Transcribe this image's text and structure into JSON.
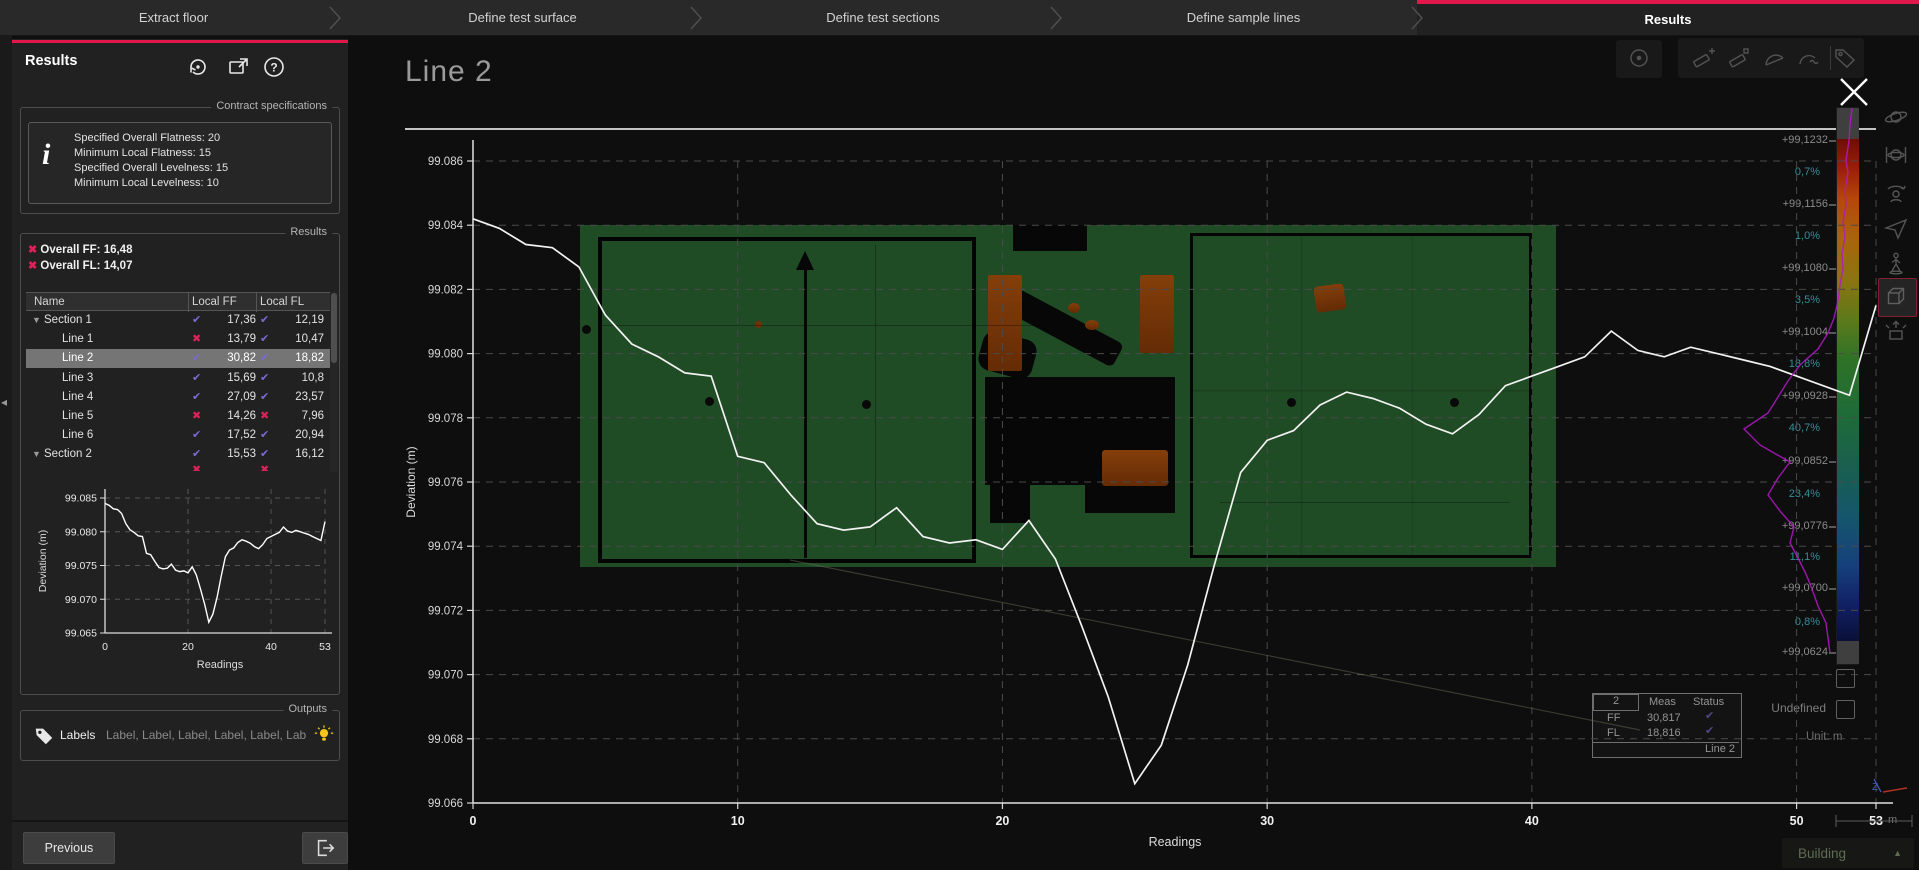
{
  "wizard": {
    "tabs": [
      {
        "label": "Extract floor",
        "active": false
      },
      {
        "label": "Define test surface",
        "active": false
      },
      {
        "label": "Define test sections",
        "active": false
      },
      {
        "label": "Define sample lines",
        "active": false
      },
      {
        "label": "Results",
        "active": true
      }
    ]
  },
  "sidebar": {
    "title": "Results",
    "header_icons": [
      "history-icon",
      "open-new-window-icon",
      "help-icon"
    ],
    "contract": {
      "group_label": "Contract specifications",
      "lines": [
        "Specified Overall Flatness: 20",
        "Minimum Local Flatness: 15",
        "Specified Overall Levelness: 15",
        "Minimum Local Levelness: 10"
      ]
    },
    "results": {
      "group_label": "Results",
      "overall": [
        {
          "label": "Overall FF: 16,48",
          "status": "fail"
        },
        {
          "label": "Overall FL: 14,07",
          "status": "fail"
        }
      ],
      "table": {
        "columns": [
          "Name",
          "Local FF",
          "Local FL"
        ],
        "rows": [
          {
            "name": "Section 1",
            "level": 0,
            "expandable": true,
            "ff": "17,36",
            "ff_status": "pass",
            "fl": "12,19",
            "fl_status": "pass",
            "selected": false
          },
          {
            "name": "Line 1",
            "level": 1,
            "expandable": false,
            "ff": "13,79",
            "ff_status": "fail",
            "fl": "10,47",
            "fl_status": "pass",
            "selected": false
          },
          {
            "name": "Line 2",
            "level": 1,
            "expandable": false,
            "ff": "30,82",
            "ff_status": "pass",
            "fl": "18,82",
            "fl_status": "pass",
            "selected": true
          },
          {
            "name": "Line 3",
            "level": 1,
            "expandable": false,
            "ff": "15,69",
            "ff_status": "pass",
            "fl": "10,8",
            "fl_status": "pass",
            "selected": false
          },
          {
            "name": "Line 4",
            "level": 1,
            "expandable": false,
            "ff": "27,09",
            "ff_status": "pass",
            "fl": "23,57",
            "fl_status": "pass",
            "selected": false
          },
          {
            "name": "Line 5",
            "level": 1,
            "expandable": false,
            "ff": "14,26",
            "ff_status": "fail",
            "fl": "7,96",
            "fl_status": "fail",
            "selected": false
          },
          {
            "name": "Line 6",
            "level": 1,
            "expandable": false,
            "ff": "17,52",
            "ff_status": "pass",
            "fl": "20,94",
            "fl_status": "pass",
            "selected": false
          },
          {
            "name": "Section 2",
            "level": 0,
            "expandable": true,
            "ff": "15,53",
            "ff_status": "pass",
            "fl": "16,12",
            "fl_status": "pass",
            "selected": false
          }
        ]
      }
    },
    "outputs": {
      "group_label": "Outputs",
      "labels_title": "Labels",
      "labels_value": "Label, Label, Label, Label, Label, Lab"
    },
    "footer": {
      "previous_label": "Previous"
    }
  },
  "overlay": {
    "title": "Line 2",
    "top_toolbar_icons": [
      "sphere-icon",
      "add-measurement-icon",
      "measurement-icon",
      "angle-icon",
      "angle-wave-icon",
      "tag-icon"
    ],
    "view_toolbar_icons": [
      "orbit-icon",
      "constrained-orbit-icon",
      "turntable-icon",
      "fly-icon",
      "walk-icon",
      "view-cube-icon",
      "explode-icon"
    ],
    "undefined_label": "Undefined",
    "unit_label": "Unit: m",
    "ruler_label": "m",
    "building_label": "Building",
    "tooltip": {
      "id": "2",
      "col_measurement": "Meas",
      "col_status": "Status",
      "rows": [
        {
          "label": "FF",
          "value": "30,817",
          "status": "pass"
        },
        {
          "label": "FL",
          "value": "18,816",
          "status": "pass"
        }
      ],
      "footer": "Line 2"
    },
    "color_scale": {
      "labels": [
        {
          "text": "+99,1232",
          "kind": "value"
        },
        {
          "text": "0,7%",
          "kind": "pct"
        },
        {
          "text": "+99,1156",
          "kind": "value"
        },
        {
          "text": "1,0%",
          "kind": "pct"
        },
        {
          "text": "+99,1080",
          "kind": "value"
        },
        {
          "text": "3,5%",
          "kind": "pct"
        },
        {
          "text": "+99,1004",
          "kind": "value"
        },
        {
          "text": "18,8%",
          "kind": "pct"
        },
        {
          "text": "+99,0928",
          "kind": "value"
        },
        {
          "text": "40,7%",
          "kind": "pct"
        },
        {
          "text": "+99,0852",
          "kind": "value"
        },
        {
          "text": "23,4%",
          "kind": "pct"
        },
        {
          "text": "+99,0776",
          "kind": "value"
        },
        {
          "text": "11,1%",
          "kind": "pct"
        },
        {
          "text": "+99,0700",
          "kind": "value"
        },
        {
          "text": "0,8%",
          "kind": "pct"
        },
        {
          "text": "+99,0624",
          "kind": "value"
        }
      ]
    }
  },
  "chart_data": {
    "type": "line",
    "title": "Line 2",
    "xlabel": "Readings",
    "ylabel": "Deviation (m)",
    "xlim": [
      0,
      53
    ],
    "ylim_main": [
      99.066,
      99.086
    ],
    "x_ticks": [
      0,
      10,
      20,
      30,
      40,
      50,
      53
    ],
    "main_y_ticks": [
      99.086,
      99.084,
      99.082,
      99.08,
      99.078,
      99.076,
      99.074,
      99.072,
      99.07,
      99.068,
      99.066
    ],
    "mini_y_ticks": [
      99.085,
      99.08,
      99.075,
      99.07,
      99.065
    ],
    "mini_x_ticks": [
      0,
      20,
      40,
      53
    ],
    "grid": "dashed",
    "legend": "none",
    "series": [
      {
        "name": "Line 2",
        "color": "#f2f2f2",
        "values": [
          99.0842,
          99.0839,
          99.0834,
          99.0833,
          99.0827,
          99.0812,
          99.0803,
          99.0799,
          99.0794,
          99.0793,
          99.0768,
          99.0766,
          99.0756,
          99.0747,
          99.0745,
          99.0746,
          99.0752,
          99.0743,
          99.0741,
          99.0742,
          99.0739,
          99.0748,
          99.0736,
          99.0715,
          99.0693,
          99.0666,
          99.0678,
          99.0703,
          99.0734,
          99.0763,
          99.0773,
          99.0776,
          99.0784,
          99.0788,
          99.0786,
          99.0783,
          99.0778,
          99.0775,
          99.0781,
          99.079,
          99.0793,
          99.0796,
          99.0799,
          99.0807,
          99.0801,
          99.0799,
          99.0802,
          99.08,
          99.0798,
          99.0796,
          99.0793,
          99.079,
          99.0787,
          99.0815
        ]
      }
    ],
    "histogram_band_percents": [
      0.7,
      1.0,
      3.5,
      18.8,
      40.7,
      23.4,
      11.1,
      0.8
    ]
  },
  "colors": {
    "accent_red": "#e0174b",
    "pass_check": "#7a6bd6",
    "fail_x": "#e0205a",
    "series_line": "#ffffff",
    "pct_label": "#2f8f96"
  }
}
